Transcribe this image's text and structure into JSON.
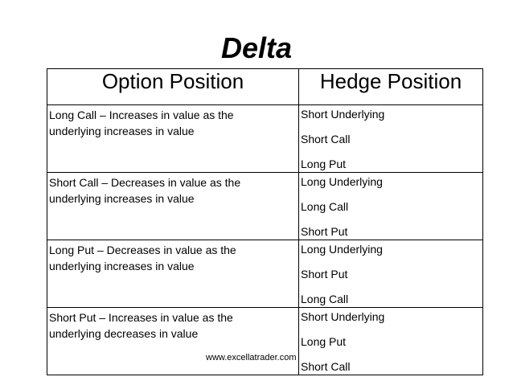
{
  "title": "Delta",
  "table": {
    "headers": [
      "Option Position",
      "Hedge Position"
    ],
    "rows": [
      {
        "option_line1": "Long Call – Increases in value as the",
        "option_line2": "underlying increases in value",
        "hedges": [
          "Short Underlying",
          "Short Call",
          "Long Put"
        ]
      },
      {
        "option_line1": "Short Call – Decreases in value as the",
        "option_line2": "underlying increases in value",
        "hedges": [
          "Long Underlying",
          "Long Call",
          "Short Put"
        ]
      },
      {
        "option_line1": "Long Put – Decreases in value as the",
        "option_line2": "underlying increases in value",
        "hedges": [
          "Long Underlying",
          "Short Put",
          "Long Call"
        ]
      },
      {
        "option_line1": "Short Put – Increases in value as the",
        "option_line2": "underlying decreases in value",
        "hedges": [
          "Short Underlying",
          "Long Put",
          "Short Call"
        ]
      }
    ]
  },
  "footer": {
    "url": "www.excellatrader.com"
  }
}
